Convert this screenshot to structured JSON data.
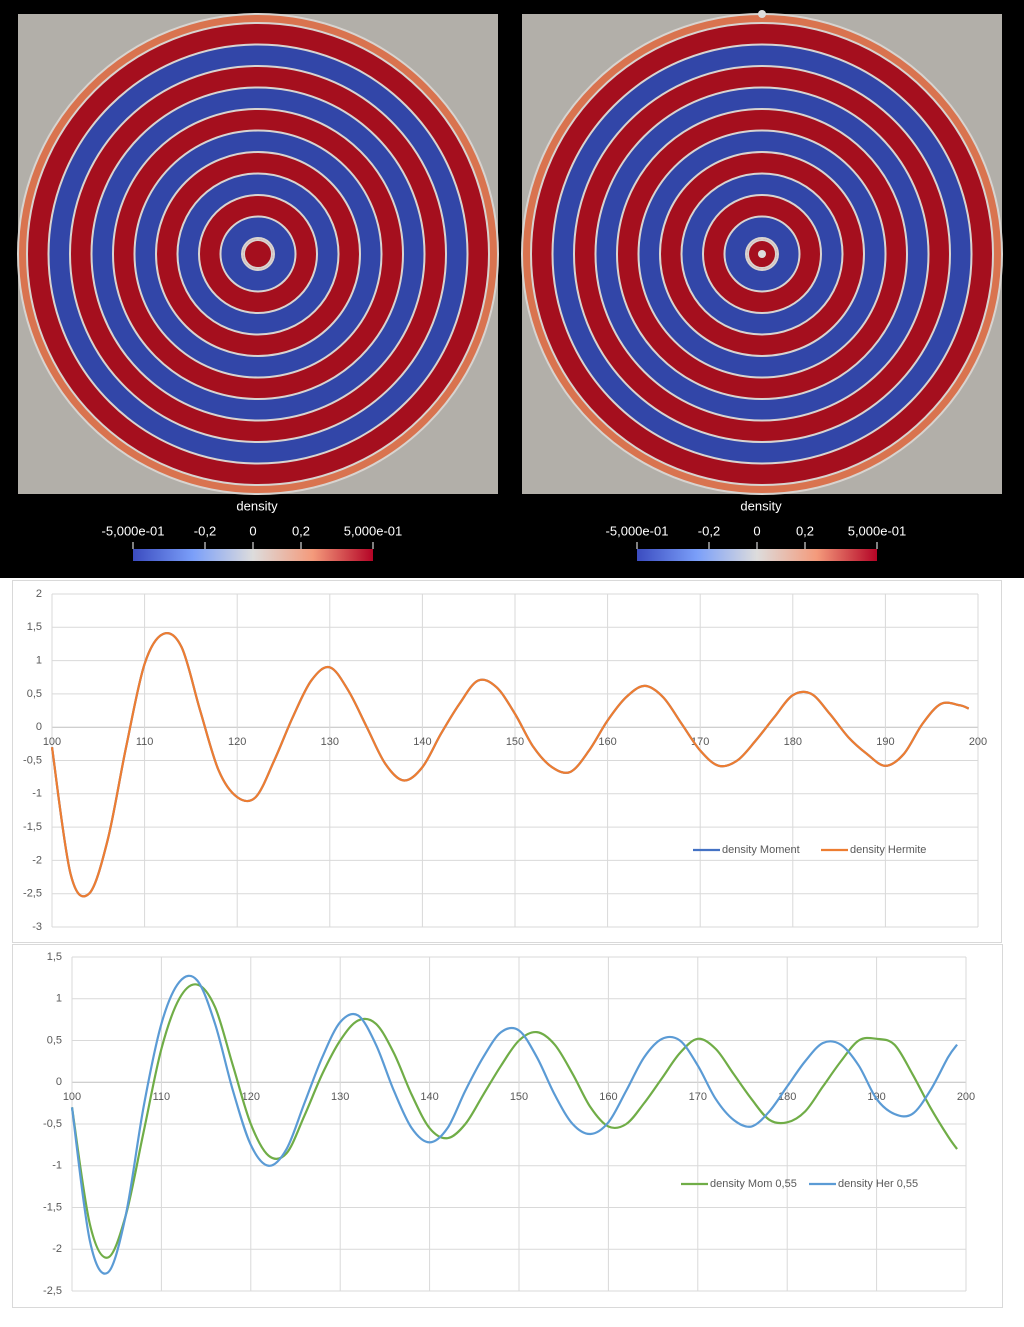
{
  "panels": [
    {
      "title": "density",
      "colorbar": {
        "clim": [
          -0.5,
          0.5
        ],
        "ticks": [
          {
            "value": -0.5,
            "label": "-5,000e-01"
          },
          {
            "value": -0.2,
            "label": "-0,2"
          },
          0,
          {
            "value": 0.2,
            "label": "0,2"
          },
          {
            "value": 0.5,
            "label": "5,000e-01"
          }
        ]
      }
    },
    {
      "title": "density",
      "colorbar": {
        "clim": [
          -0.5,
          0.5
        ],
        "ticks": [
          {
            "value": -0.5,
            "label": "-5,000e-01"
          },
          {
            "value": -0.2,
            "label": "-0,2"
          },
          0,
          {
            "value": 0.2,
            "label": "0,2"
          },
          {
            "value": 0.5,
            "label": "5,000e-01"
          }
        ]
      }
    }
  ],
  "chart_data": [
    {
      "type": "line",
      "grid": true,
      "legend": "bottom-right",
      "x": [
        100,
        102,
        104,
        106,
        108,
        110,
        112,
        114,
        116,
        118,
        120,
        122,
        124,
        126,
        128,
        130,
        132,
        134,
        136,
        138,
        140,
        142,
        144,
        146,
        148,
        150,
        152,
        154,
        156,
        158,
        160,
        162,
        164,
        166,
        168,
        170,
        172,
        174,
        176,
        178,
        180,
        182,
        184,
        186,
        188,
        190,
        192,
        194,
        196,
        198,
        199
      ],
      "xlim": [
        100,
        200
      ],
      "xticks": [
        100,
        110,
        120,
        130,
        140,
        150,
        160,
        170,
        180,
        190,
        200
      ],
      "ylim": [
        -3,
        2
      ],
      "yticks": [
        -3,
        {
          "value": -2.5,
          "label": "-2,5"
        },
        -2,
        {
          "value": -1.5,
          "label": "-1,5"
        },
        -1,
        {
          "value": -0.5,
          "label": "-0,5"
        },
        0,
        {
          "value": 0.5,
          "label": "0,5"
        },
        1,
        {
          "value": 1.5,
          "label": "1,5"
        },
        2
      ],
      "series": [
        {
          "name": "density Moment",
          "color": "#4472c4",
          "values": [
            -0.3,
            -2.2,
            -2.5,
            -1.7,
            -0.3,
            0.95,
            1.4,
            1.2,
            0.25,
            -0.65,
            -1.05,
            -1.05,
            -0.5,
            0.15,
            0.7,
            0.9,
            0.55,
            0.0,
            -0.55,
            -0.8,
            -0.6,
            -0.1,
            0.35,
            0.7,
            0.6,
            0.2,
            -0.3,
            -0.6,
            -0.67,
            -0.35,
            0.1,
            0.45,
            0.62,
            0.45,
            0.05,
            -0.35,
            -0.58,
            -0.5,
            -0.2,
            0.15,
            0.48,
            0.5,
            0.2,
            -0.15,
            -0.4,
            -0.58,
            -0.4,
            0.05,
            0.35,
            0.33,
            0.28
          ]
        },
        {
          "name": "density Hermite",
          "color": "#ed7d31",
          "values": [
            -0.3,
            -2.2,
            -2.5,
            -1.7,
            -0.3,
            0.95,
            1.4,
            1.2,
            0.25,
            -0.65,
            -1.05,
            -1.05,
            -0.5,
            0.15,
            0.7,
            0.9,
            0.55,
            0.0,
            -0.55,
            -0.8,
            -0.6,
            -0.1,
            0.35,
            0.7,
            0.6,
            0.2,
            -0.3,
            -0.6,
            -0.67,
            -0.35,
            0.1,
            0.45,
            0.62,
            0.45,
            0.05,
            -0.35,
            -0.58,
            -0.5,
            -0.2,
            0.15,
            0.48,
            0.5,
            0.2,
            -0.15,
            -0.4,
            -0.58,
            -0.4,
            0.05,
            0.35,
            0.33,
            0.28
          ]
        }
      ]
    },
    {
      "type": "line",
      "grid": true,
      "legend": "bottom-right",
      "x": [
        100,
        102,
        104,
        106,
        108,
        110,
        112,
        114,
        116,
        118,
        120,
        122,
        124,
        126,
        128,
        130,
        132,
        134,
        136,
        138,
        140,
        142,
        144,
        146,
        148,
        150,
        152,
        154,
        156,
        158,
        160,
        162,
        164,
        166,
        168,
        170,
        172,
        174,
        176,
        178,
        180,
        182,
        184,
        186,
        188,
        190,
        192,
        194,
        196,
        198,
        199
      ],
      "xlim": [
        100,
        200
      ],
      "xticks": [
        100,
        110,
        120,
        130,
        140,
        150,
        160,
        170,
        180,
        190,
        200
      ],
      "ylim": [
        -2.5,
        1.5
      ],
      "yticks": [
        {
          "value": -2.5,
          "label": "-2,5"
        },
        -2,
        {
          "value": -1.5,
          "label": "-1,5"
        },
        -1,
        {
          "value": -0.5,
          "label": "-0,5"
        },
        0,
        {
          "value": 0.5,
          "label": "0,5"
        },
        1,
        {
          "value": 1.5,
          "label": "1,5"
        }
      ],
      "series": [
        {
          "name": "density Mom 0,55",
          "color": "#70ad47",
          "values": [
            -0.3,
            -1.7,
            -2.1,
            -1.6,
            -0.6,
            0.4,
            1.0,
            1.17,
            0.9,
            0.2,
            -0.5,
            -0.88,
            -0.85,
            -0.4,
            0.1,
            0.5,
            0.74,
            0.7,
            0.35,
            -0.15,
            -0.55,
            -0.67,
            -0.5,
            -0.15,
            0.2,
            0.5,
            0.6,
            0.45,
            0.1,
            -0.3,
            -0.53,
            -0.5,
            -0.25,
            0.05,
            0.35,
            0.52,
            0.4,
            0.1,
            -0.2,
            -0.45,
            -0.48,
            -0.35,
            -0.05,
            0.25,
            0.5,
            0.52,
            0.45,
            0.1,
            -0.3,
            -0.65,
            -0.8
          ]
        },
        {
          "name": "density Her 0,55",
          "color": "#5b9bd5",
          "values": [
            -0.3,
            -1.9,
            -2.28,
            -1.6,
            -0.3,
            0.7,
            1.2,
            1.22,
            0.7,
            -0.1,
            -0.75,
            -1.0,
            -0.8,
            -0.25,
            0.3,
            0.72,
            0.8,
            0.45,
            -0.1,
            -0.55,
            -0.72,
            -0.55,
            -0.1,
            0.3,
            0.6,
            0.62,
            0.3,
            -0.15,
            -0.5,
            -0.62,
            -0.48,
            -0.1,
            0.3,
            0.52,
            0.5,
            0.2,
            -0.2,
            -0.45,
            -0.53,
            -0.35,
            -0.05,
            0.25,
            0.47,
            0.45,
            0.2,
            -0.2,
            -0.38,
            -0.38,
            -0.1,
            0.3,
            0.45
          ]
        }
      ]
    }
  ]
}
